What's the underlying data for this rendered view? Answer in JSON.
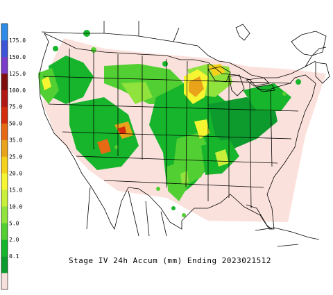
{
  "caption": "Stage IV 24h Accum (mm) Ending 2023021512",
  "legend": {
    "labels": [
      "175.0",
      "150.0",
      "125.0",
      "100.0",
      "75.0",
      "50.0",
      "35.0",
      "25.0",
      "20.0",
      "15.0",
      "10.0",
      "5.0",
      "2.0",
      "0.1"
    ],
    "colors": [
      "#f8e0dc",
      "#0e9b2e",
      "#17b52c",
      "#52d033",
      "#90e23d",
      "#c8ef3a",
      "#f5f531",
      "#f4d11a",
      "#e8a31a",
      "#e56a13",
      "#d42d0e",
      "#b21816",
      "#7e0d0d",
      "#7b3cc9",
      "#3f55d8",
      "#2e8ce8"
    ]
  },
  "colors": {
    "land": "#ffffff",
    "border": "#000000",
    "no_data_region": "#fbe1dc"
  }
}
